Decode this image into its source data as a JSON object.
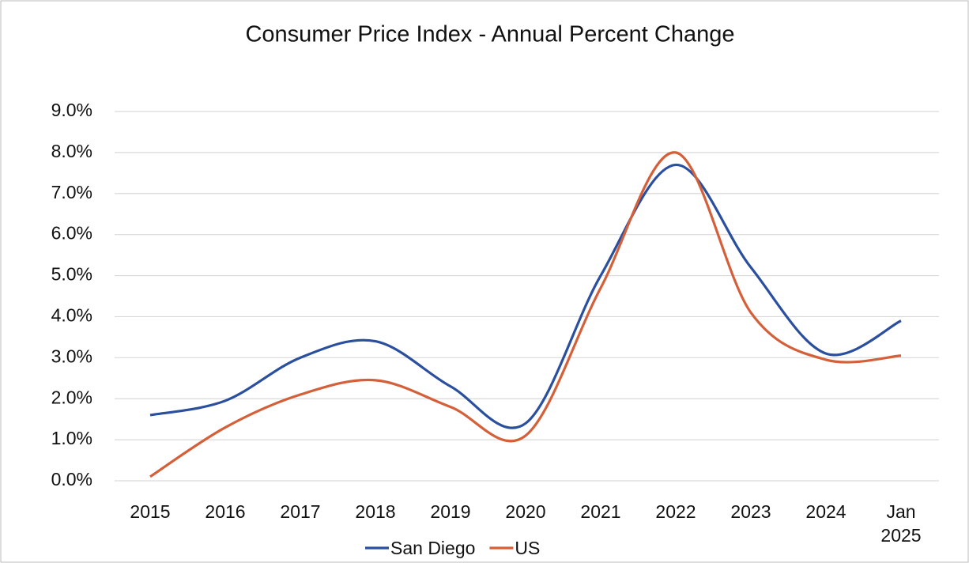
{
  "chart_data": {
    "type": "line",
    "title": "Consumer Price Index - Annual Percent Change",
    "categories": [
      "2015",
      "2016",
      "2017",
      "2018",
      "2019",
      "2020",
      "2021",
      "2022",
      "2023",
      "2024",
      "Jan 2025"
    ],
    "series": [
      {
        "name": "San Diego",
        "color": "#2a4f9e",
        "values": [
          1.6,
          1.95,
          3.0,
          3.4,
          2.3,
          1.4,
          5.0,
          7.7,
          5.2,
          3.1,
          3.9
        ]
      },
      {
        "name": "US",
        "color": "#d4603a",
        "values": [
          0.1,
          1.3,
          2.1,
          2.45,
          1.8,
          1.1,
          4.7,
          8.0,
          4.1,
          2.95,
          3.05
        ]
      }
    ],
    "ylim": [
      0,
      9
    ],
    "yticks": [
      {
        "value": 0,
        "label": "0.0%"
      },
      {
        "value": 1,
        "label": "1.0%"
      },
      {
        "value": 2,
        "label": "2.0%"
      },
      {
        "value": 3,
        "label": "3.0%"
      },
      {
        "value": 4,
        "label": "4.0%"
      },
      {
        "value": 5,
        "label": "5.0%"
      },
      {
        "value": 6,
        "label": "6.0%"
      },
      {
        "value": 7,
        "label": "7.0%"
      },
      {
        "value": 8,
        "label": "8.0%"
      },
      {
        "value": 9,
        "label": "9.0%"
      }
    ],
    "grid": true,
    "smooth": true,
    "legend": "bottom"
  }
}
